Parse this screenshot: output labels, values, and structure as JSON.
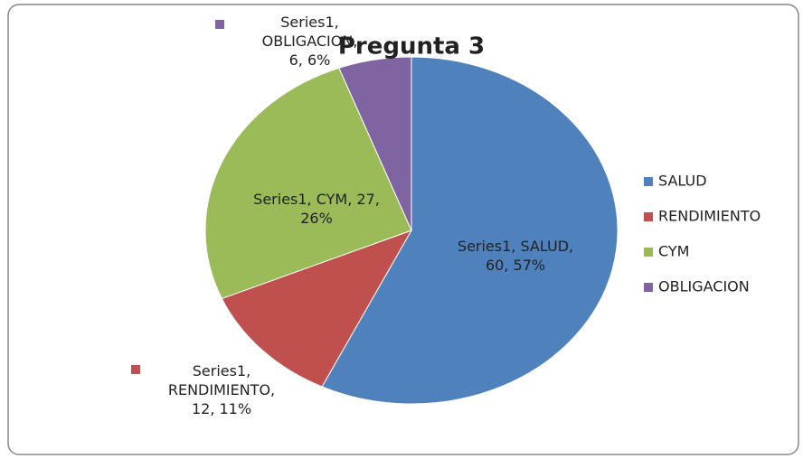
{
  "chart_data": {
    "type": "pie",
    "title": "Pregunta 3",
    "categories": [
      "SALUD",
      "RENDIMIENTO",
      "CYM",
      "OBLIGACION"
    ],
    "values": [
      60,
      12,
      27,
      6
    ],
    "value_labels": [
      "Series1, SALUD, 60, 57%",
      "Series1, RENDIMIENTO, 12, 11%",
      "Series1, CYM, 27, 26%",
      "Series1, OBLIGACION, 6, 6%"
    ],
    "colors": [
      "#4f81bd",
      "#c0504d",
      "#9bbb59",
      "#8064a2"
    ],
    "legend": "right"
  }
}
